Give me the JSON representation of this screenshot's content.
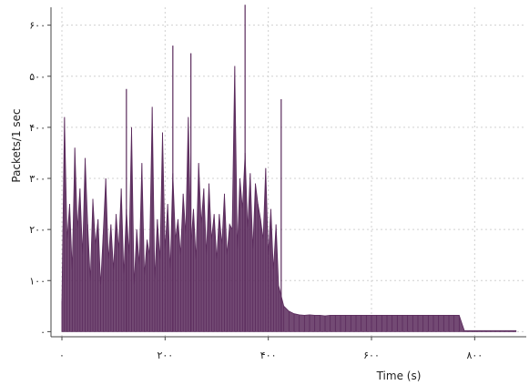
{
  "chart_data": {
    "type": "area",
    "title": "",
    "xlabel": "Time (s)",
    "ylabel": "Packets/1 sec",
    "xlim": [
      0,
      900
    ],
    "ylim": [
      -10,
      635
    ],
    "x_ticks": [
      {
        "value": 0,
        "label": "۰"
      },
      {
        "value": 200,
        "label": "۲۰۰"
      },
      {
        "value": 400,
        "label": "۴۰۰"
      },
      {
        "value": 600,
        "label": "۶۰۰"
      },
      {
        "value": 800,
        "label": "۸۰۰"
      }
    ],
    "y_ticks": [
      {
        "value": 0,
        "label": "۰"
      },
      {
        "value": 100,
        "label": "۱۰۰"
      },
      {
        "value": 200,
        "label": "۲۰۰"
      },
      {
        "value": 300,
        "label": "۳۰۰"
      },
      {
        "value": 400,
        "label": "۴۰۰"
      },
      {
        "value": 500,
        "label": "۵۰۰"
      },
      {
        "value": 600,
        "label": "۶۰۰"
      }
    ],
    "grid": true,
    "series_color": "#5a2a5c",
    "grid_color": "#d0d0d0",
    "series": [
      {
        "x": [
          0,
          5,
          10,
          15,
          20,
          25,
          30,
          35,
          40,
          45,
          50,
          55,
          60,
          65,
          70,
          75,
          80,
          85,
          90,
          95,
          100,
          105,
          110,
          115,
          120,
          125,
          130,
          135,
          140,
          145,
          150,
          155,
          160,
          165,
          170,
          175,
          180,
          185,
          190,
          195,
          200,
          205,
          210,
          215,
          220,
          225,
          230,
          235,
          240,
          245,
          250,
          255,
          260,
          265,
          270,
          275,
          280,
          285,
          290,
          295,
          300,
          305,
          310,
          315,
          320,
          325,
          330,
          335,
          340,
          345,
          350,
          355,
          360,
          365,
          370,
          375,
          380,
          385,
          390,
          395,
          400,
          405,
          410,
          415,
          420,
          430,
          440,
          450,
          460,
          470,
          480,
          490,
          500,
          510,
          520,
          530,
          540,
          550,
          560,
          570,
          580,
          590,
          600,
          610,
          620,
          630,
          640,
          650,
          660,
          670,
          680,
          690,
          700,
          710,
          720,
          730,
          740,
          750,
          760,
          770,
          780,
          790,
          800,
          810,
          820,
          830,
          840,
          850,
          860,
          870,
          880
        ],
        "y": [
          60,
          420,
          180,
          250,
          120,
          360,
          200,
          280,
          150,
          340,
          210,
          100,
          260,
          170,
          220,
          90,
          190,
          300,
          140,
          210,
          120,
          230,
          160,
          280,
          110,
          240,
          150,
          400,
          90,
          200,
          130,
          330,
          110,
          180,
          150,
          440,
          100,
          220,
          140,
          390,
          160,
          250,
          120,
          310,
          180,
          220,
          150,
          270,
          190,
          420,
          170,
          240,
          140,
          330,
          210,
          280,
          150,
          290,
          180,
          230,
          140,
          230,
          170,
          270,
          150,
          210,
          200,
          520,
          160,
          300,
          240,
          350,
          200,
          310,
          160,
          290,
          250,
          220,
          180,
          320,
          150,
          240,
          120,
          210,
          90,
          50,
          40,
          35,
          33,
          32,
          33,
          32,
          32,
          31,
          32,
          32,
          32,
          32,
          32,
          32,
          32,
          32,
          32,
          32,
          32,
          32,
          32,
          32,
          32,
          32,
          32,
          32,
          32,
          32,
          32,
          32,
          32,
          32,
          32,
          32,
          2,
          2,
          2,
          2,
          2,
          2,
          2,
          2,
          2,
          2,
          2
        ]
      }
    ],
    "spikes": [
      {
        "x": 125,
        "y": 475
      },
      {
        "x": 215,
        "y": 560
      },
      {
        "x": 250,
        "y": 545
      },
      {
        "x": 355,
        "y": 640
      },
      {
        "x": 425,
        "y": 455
      }
    ]
  }
}
